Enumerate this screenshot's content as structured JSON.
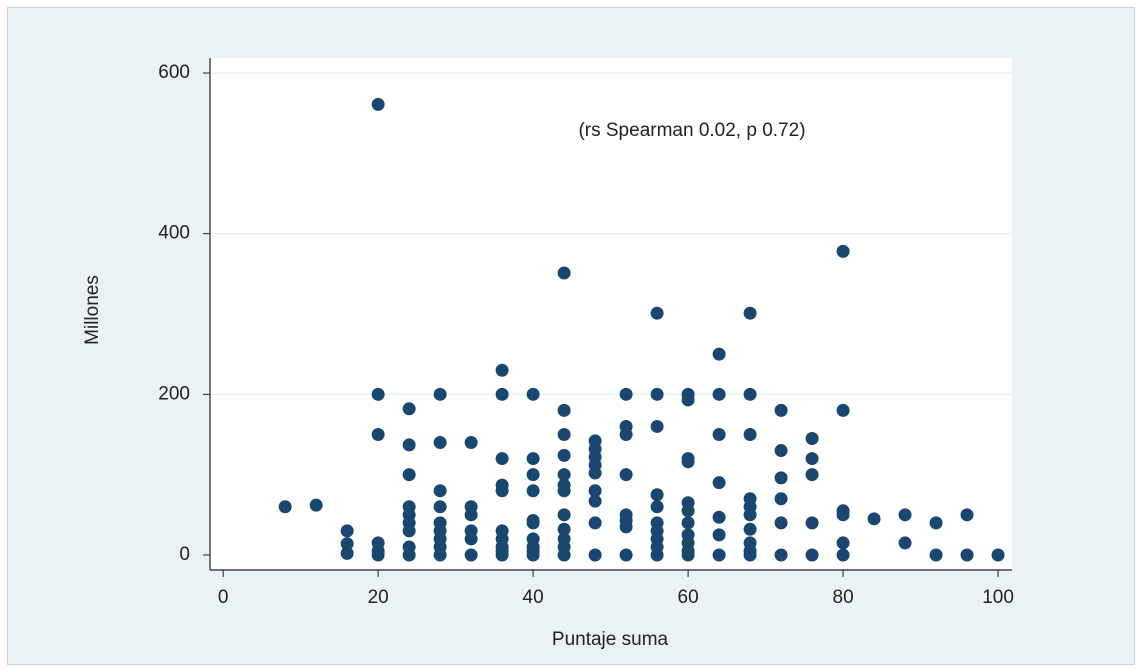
{
  "chart_data": {
    "type": "scatter",
    "x_label": "Puntaje suma",
    "y_label": "Millones",
    "annotation": "(rs Spearman 0.02, p 0.72)",
    "xlim": [
      -1.7,
      101.8
    ],
    "ylim": [
      -18.7,
      618.7
    ],
    "xticks": [
      0,
      20,
      40,
      60,
      80,
      100
    ],
    "yticks": [
      0,
      200,
      400,
      600
    ],
    "grid": true,
    "color": "#1a476f",
    "x": [
      8,
      12,
      16,
      16,
      16,
      20,
      20,
      20,
      20,
      20,
      20,
      24,
      24,
      24,
      24,
      24,
      24,
      24,
      24,
      24,
      28,
      28,
      28,
      28,
      28,
      28,
      28,
      28,
      28,
      32,
      32,
      32,
      32,
      32,
      32,
      36,
      36,
      36,
      36,
      36,
      36,
      36,
      36,
      36,
      36,
      40,
      40,
      40,
      40,
      40,
      40,
      40,
      40,
      40,
      40,
      44,
      44,
      44,
      44,
      44,
      44,
      44,
      44,
      44,
      44,
      44,
      44,
      48,
      48,
      48,
      48,
      48,
      48,
      48,
      48,
      48,
      52,
      52,
      52,
      52,
      52,
      52,
      52,
      52,
      56,
      56,
      56,
      56,
      56,
      56,
      56,
      56,
      56,
      56,
      60,
      60,
      60,
      60,
      60,
      60,
      60,
      60,
      60,
      60,
      60,
      64,
      64,
      64,
      64,
      64,
      64,
      64,
      68,
      68,
      68,
      68,
      68,
      68,
      68,
      68,
      68,
      68,
      72,
      72,
      72,
      72,
      72,
      72,
      76,
      76,
      76,
      76,
      76,
      80,
      80,
      80,
      80,
      80,
      80,
      84,
      88,
      88,
      92,
      92,
      96,
      96,
      100
    ],
    "y": [
      60,
      62,
      30,
      14,
      2,
      561,
      200,
      150,
      15,
      5,
      0,
      182,
      137,
      100,
      60,
      50,
      40,
      30,
      10,
      0,
      200,
      140,
      80,
      60,
      40,
      30,
      20,
      10,
      0,
      140,
      60,
      50,
      30,
      20,
      0,
      230,
      200,
      120,
      87,
      80,
      30,
      20,
      10,
      5,
      0,
      200,
      120,
      100,
      80,
      43,
      40,
      20,
      10,
      5,
      0,
      351,
      180,
      150,
      124,
      100,
      87,
      80,
      50,
      32,
      20,
      10,
      0,
      142,
      132,
      122,
      112,
      102,
      80,
      67,
      40,
      0,
      200,
      160,
      150,
      100,
      50,
      43,
      35,
      0,
      301,
      200,
      160,
      75,
      60,
      40,
      30,
      20,
      10,
      0,
      200,
      193,
      120,
      116,
      65,
      55,
      40,
      25,
      15,
      5,
      0,
      250,
      200,
      150,
      90,
      47,
      25,
      0,
      301,
      200,
      150,
      70,
      60,
      50,
      32,
      15,
      5,
      0,
      180,
      130,
      96,
      70,
      40,
      0,
      145,
      120,
      100,
      40,
      0,
      378,
      180,
      55,
      50,
      15,
      0,
      45,
      50,
      15,
      40,
      0,
      50,
      0,
      0
    ]
  }
}
